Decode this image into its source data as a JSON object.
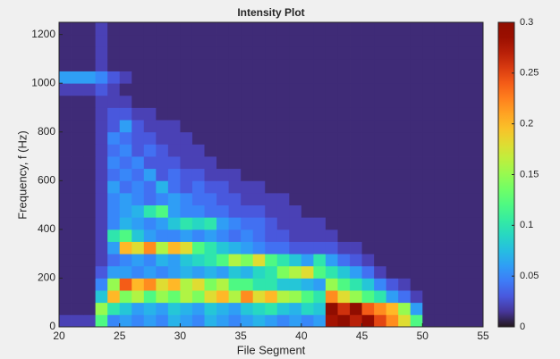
{
  "chart_data": {
    "type": "heatmap",
    "title": "Intensity Plot",
    "xlabel": "File Segment",
    "ylabel": "Frequency, f (Hz)",
    "xlim": [
      20,
      55
    ],
    "xticks": [
      20,
      25,
      30,
      35,
      40,
      45,
      50,
      55
    ],
    "ylim": [
      0,
      1250
    ],
    "yticks": [
      0,
      200,
      400,
      600,
      800,
      1000,
      1200
    ],
    "clim": [
      0,
      0.3
    ],
    "cticks": [
      0,
      0.05,
      0.1,
      0.15,
      0.2,
      0.25,
      0.3
    ],
    "colormap": "turbo",
    "xbins": [
      20,
      21,
      22,
      23,
      24,
      25,
      26,
      27,
      28,
      29,
      30,
      31,
      32,
      33,
      34,
      35,
      36,
      37,
      38,
      39,
      40,
      41,
      42,
      43,
      44,
      45,
      46,
      47,
      48,
      49,
      50,
      51,
      52,
      53,
      54,
      55
    ],
    "ybins": [
      0,
      50,
      100,
      150,
      200,
      250,
      300,
      350,
      400,
      450,
      500,
      550,
      600,
      650,
      700,
      750,
      800,
      850,
      900,
      950,
      1000,
      1050,
      1100,
      1150,
      1200,
      1250
    ],
    "z": [
      [
        0.02,
        0.02,
        0.02,
        0.12,
        0.05,
        0.06,
        0.05,
        0.06,
        0.05,
        0.07,
        0.06,
        0.05,
        0.07,
        0.06,
        0.05,
        0.06,
        0.07,
        0.06,
        0.05,
        0.06,
        0.05,
        0.06,
        0.28,
        0.3,
        0.27,
        0.29,
        0.25,
        0.22,
        0.18,
        0.12,
        0.01,
        0.01,
        0.01,
        0.01,
        0.01
      ],
      [
        0.01,
        0.01,
        0.01,
        0.15,
        0.1,
        0.08,
        0.06,
        0.07,
        0.06,
        0.08,
        0.07,
        0.06,
        0.08,
        0.07,
        0.06,
        0.08,
        0.09,
        0.1,
        0.08,
        0.07,
        0.09,
        0.08,
        0.3,
        0.26,
        0.3,
        0.24,
        0.22,
        0.2,
        0.15,
        0.06,
        0.01,
        0.01,
        0.01,
        0.01,
        0.01
      ],
      [
        0.01,
        0.01,
        0.01,
        0.08,
        0.2,
        0.14,
        0.16,
        0.12,
        0.15,
        0.13,
        0.16,
        0.14,
        0.18,
        0.2,
        0.16,
        0.22,
        0.18,
        0.2,
        0.16,
        0.15,
        0.12,
        0.1,
        0.22,
        0.18,
        0.15,
        0.12,
        0.1,
        0.06,
        0.04,
        0.02,
        0.01,
        0.01,
        0.01,
        0.01,
        0.01
      ],
      [
        0.01,
        0.01,
        0.01,
        0.05,
        0.15,
        0.24,
        0.2,
        0.22,
        0.18,
        0.2,
        0.16,
        0.18,
        0.14,
        0.16,
        0.12,
        0.12,
        0.1,
        0.1,
        0.08,
        0.08,
        0.07,
        0.06,
        0.15,
        0.12,
        0.1,
        0.08,
        0.05,
        0.03,
        0.02,
        0.01,
        0.01,
        0.01,
        0.01,
        0.01,
        0.01
      ],
      [
        0.01,
        0.01,
        0.01,
        0.03,
        0.06,
        0.06,
        0.05,
        0.06,
        0.05,
        0.06,
        0.07,
        0.06,
        0.07,
        0.06,
        0.08,
        0.07,
        0.09,
        0.1,
        0.14,
        0.16,
        0.18,
        0.12,
        0.1,
        0.08,
        0.06,
        0.04,
        0.02,
        0.01,
        0.01,
        0.01,
        0.01,
        0.01,
        0.01,
        0.01,
        0.01
      ],
      [
        0.01,
        0.01,
        0.01,
        0.02,
        0.04,
        0.05,
        0.06,
        0.05,
        0.07,
        0.06,
        0.08,
        0.09,
        0.1,
        0.12,
        0.16,
        0.14,
        0.18,
        0.12,
        0.1,
        0.08,
        0.06,
        0.1,
        0.06,
        0.04,
        0.03,
        0.02,
        0.01,
        0.01,
        0.01,
        0.01,
        0.01,
        0.01,
        0.01,
        0.01,
        0.01
      ],
      [
        0.01,
        0.01,
        0.01,
        0.02,
        0.06,
        0.2,
        0.18,
        0.22,
        0.16,
        0.2,
        0.18,
        0.12,
        0.1,
        0.08,
        0.07,
        0.06,
        0.05,
        0.04,
        0.04,
        0.03,
        0.03,
        0.03,
        0.03,
        0.02,
        0.02,
        0.01,
        0.01,
        0.01,
        0.01,
        0.01,
        0.01,
        0.01,
        0.01,
        0.01,
        0.01
      ],
      [
        0.01,
        0.01,
        0.01,
        0.02,
        0.1,
        0.12,
        0.08,
        0.06,
        0.05,
        0.05,
        0.06,
        0.05,
        0.06,
        0.05,
        0.04,
        0.05,
        0.04,
        0.03,
        0.03,
        0.02,
        0.02,
        0.02,
        0.02,
        0.01,
        0.01,
        0.01,
        0.01,
        0.01,
        0.01,
        0.01,
        0.01,
        0.01,
        0.01,
        0.01,
        0.01
      ],
      [
        0.01,
        0.01,
        0.01,
        0.02,
        0.05,
        0.07,
        0.06,
        0.05,
        0.06,
        0.08,
        0.1,
        0.09,
        0.1,
        0.06,
        0.05,
        0.04,
        0.04,
        0.03,
        0.02,
        0.02,
        0.02,
        0.02,
        0.01,
        0.01,
        0.01,
        0.01,
        0.01,
        0.01,
        0.01,
        0.01,
        0.01,
        0.01,
        0.01,
        0.01,
        0.01
      ],
      [
        0.01,
        0.01,
        0.01,
        0.02,
        0.05,
        0.06,
        0.07,
        0.1,
        0.12,
        0.06,
        0.05,
        0.05,
        0.04,
        0.04,
        0.03,
        0.03,
        0.03,
        0.02,
        0.02,
        0.02,
        0.01,
        0.01,
        0.01,
        0.01,
        0.01,
        0.01,
        0.01,
        0.01,
        0.01,
        0.01,
        0.01,
        0.01,
        0.01,
        0.01,
        0.01
      ],
      [
        0.01,
        0.01,
        0.01,
        0.02,
        0.05,
        0.06,
        0.05,
        0.04,
        0.05,
        0.06,
        0.05,
        0.04,
        0.04,
        0.03,
        0.03,
        0.02,
        0.02,
        0.02,
        0.02,
        0.01,
        0.01,
        0.01,
        0.01,
        0.01,
        0.01,
        0.01,
        0.01,
        0.01,
        0.01,
        0.01,
        0.01,
        0.01,
        0.01,
        0.01,
        0.01
      ],
      [
        0.01,
        0.01,
        0.01,
        0.02,
        0.06,
        0.04,
        0.05,
        0.04,
        0.07,
        0.04,
        0.03,
        0.04,
        0.03,
        0.03,
        0.02,
        0.02,
        0.02,
        0.01,
        0.01,
        0.01,
        0.01,
        0.01,
        0.01,
        0.01,
        0.01,
        0.01,
        0.01,
        0.01,
        0.01,
        0.01,
        0.01,
        0.01,
        0.01,
        0.01,
        0.01
      ],
      [
        0.01,
        0.01,
        0.01,
        0.02,
        0.04,
        0.05,
        0.04,
        0.06,
        0.03,
        0.04,
        0.03,
        0.03,
        0.02,
        0.02,
        0.02,
        0.01,
        0.01,
        0.01,
        0.01,
        0.01,
        0.01,
        0.01,
        0.01,
        0.01,
        0.01,
        0.01,
        0.01,
        0.01,
        0.01,
        0.01,
        0.01,
        0.01,
        0.01,
        0.01,
        0.01
      ],
      [
        0.01,
        0.01,
        0.01,
        0.02,
        0.05,
        0.04,
        0.05,
        0.03,
        0.03,
        0.03,
        0.02,
        0.02,
        0.02,
        0.01,
        0.01,
        0.01,
        0.01,
        0.01,
        0.01,
        0.01,
        0.01,
        0.01,
        0.01,
        0.01,
        0.01,
        0.01,
        0.01,
        0.01,
        0.01,
        0.01,
        0.01,
        0.01,
        0.01,
        0.01,
        0.01
      ],
      [
        0.01,
        0.01,
        0.01,
        0.02,
        0.04,
        0.05,
        0.03,
        0.04,
        0.03,
        0.02,
        0.02,
        0.02,
        0.01,
        0.01,
        0.01,
        0.01,
        0.01,
        0.01,
        0.01,
        0.01,
        0.01,
        0.01,
        0.01,
        0.01,
        0.01,
        0.01,
        0.01,
        0.01,
        0.01,
        0.01,
        0.01,
        0.01,
        0.01,
        0.01,
        0.01
      ],
      [
        0.01,
        0.01,
        0.01,
        0.02,
        0.05,
        0.04,
        0.03,
        0.03,
        0.02,
        0.02,
        0.02,
        0.01,
        0.01,
        0.01,
        0.01,
        0.01,
        0.01,
        0.01,
        0.01,
        0.01,
        0.01,
        0.01,
        0.01,
        0.01,
        0.01,
        0.01,
        0.01,
        0.01,
        0.01,
        0.01,
        0.01,
        0.01,
        0.01,
        0.01,
        0.01
      ],
      [
        0.01,
        0.01,
        0.01,
        0.02,
        0.03,
        0.06,
        0.03,
        0.02,
        0.02,
        0.02,
        0.01,
        0.01,
        0.01,
        0.01,
        0.01,
        0.01,
        0.01,
        0.01,
        0.01,
        0.01,
        0.01,
        0.01,
        0.01,
        0.01,
        0.01,
        0.01,
        0.01,
        0.01,
        0.01,
        0.01,
        0.01,
        0.01,
        0.01,
        0.01,
        0.01
      ],
      [
        0.01,
        0.01,
        0.01,
        0.02,
        0.03,
        0.03,
        0.02,
        0.02,
        0.01,
        0.01,
        0.01,
        0.01,
        0.01,
        0.01,
        0.01,
        0.01,
        0.01,
        0.01,
        0.01,
        0.01,
        0.01,
        0.01,
        0.01,
        0.01,
        0.01,
        0.01,
        0.01,
        0.01,
        0.01,
        0.01,
        0.01,
        0.01,
        0.01,
        0.01,
        0.01
      ],
      [
        0.01,
        0.01,
        0.01,
        0.02,
        0.02,
        0.02,
        0.01,
        0.01,
        0.01,
        0.01,
        0.01,
        0.01,
        0.01,
        0.01,
        0.01,
        0.01,
        0.01,
        0.01,
        0.01,
        0.01,
        0.01,
        0.01,
        0.01,
        0.01,
        0.01,
        0.01,
        0.01,
        0.01,
        0.01,
        0.01,
        0.01,
        0.01,
        0.01,
        0.01,
        0.01
      ],
      [
        0.02,
        0.02,
        0.02,
        0.03,
        0.02,
        0.01,
        0.01,
        0.01,
        0.01,
        0.01,
        0.01,
        0.01,
        0.01,
        0.01,
        0.01,
        0.01,
        0.01,
        0.01,
        0.01,
        0.01,
        0.01,
        0.01,
        0.01,
        0.01,
        0.01,
        0.01,
        0.01,
        0.01,
        0.01,
        0.01,
        0.01,
        0.01,
        0.01,
        0.01,
        0.01
      ],
      [
        0.06,
        0.06,
        0.06,
        0.05,
        0.03,
        0.02,
        0.01,
        0.01,
        0.01,
        0.01,
        0.01,
        0.01,
        0.01,
        0.01,
        0.01,
        0.01,
        0.01,
        0.01,
        0.01,
        0.01,
        0.01,
        0.01,
        0.01,
        0.01,
        0.01,
        0.01,
        0.01,
        0.01,
        0.01,
        0.01,
        0.01,
        0.01,
        0.01,
        0.01,
        0.01
      ],
      [
        0.01,
        0.01,
        0.01,
        0.02,
        0.01,
        0.01,
        0.01,
        0.01,
        0.01,
        0.01,
        0.01,
        0.01,
        0.01,
        0.01,
        0.01,
        0.01,
        0.01,
        0.01,
        0.01,
        0.01,
        0.01,
        0.01,
        0.01,
        0.01,
        0.01,
        0.01,
        0.01,
        0.01,
        0.01,
        0.01,
        0.01,
        0.01,
        0.01,
        0.01,
        0.01
      ],
      [
        0.01,
        0.01,
        0.01,
        0.02,
        0.01,
        0.01,
        0.01,
        0.01,
        0.01,
        0.01,
        0.01,
        0.01,
        0.01,
        0.01,
        0.01,
        0.01,
        0.01,
        0.01,
        0.01,
        0.01,
        0.01,
        0.01,
        0.01,
        0.01,
        0.01,
        0.01,
        0.01,
        0.01,
        0.01,
        0.01,
        0.01,
        0.01,
        0.01,
        0.01,
        0.01
      ],
      [
        0.01,
        0.01,
        0.01,
        0.02,
        0.01,
        0.01,
        0.01,
        0.01,
        0.01,
        0.01,
        0.01,
        0.01,
        0.01,
        0.01,
        0.01,
        0.01,
        0.01,
        0.01,
        0.01,
        0.01,
        0.01,
        0.01,
        0.01,
        0.01,
        0.01,
        0.01,
        0.01,
        0.01,
        0.01,
        0.01,
        0.01,
        0.01,
        0.01,
        0.01,
        0.01
      ],
      [
        0.01,
        0.01,
        0.01,
        0.02,
        0.01,
        0.01,
        0.01,
        0.01,
        0.01,
        0.01,
        0.01,
        0.01,
        0.01,
        0.01,
        0.01,
        0.01,
        0.01,
        0.01,
        0.01,
        0.01,
        0.01,
        0.01,
        0.01,
        0.01,
        0.01,
        0.01,
        0.01,
        0.01,
        0.01,
        0.01,
        0.01,
        0.01,
        0.01,
        0.01,
        0.01
      ]
    ]
  }
}
